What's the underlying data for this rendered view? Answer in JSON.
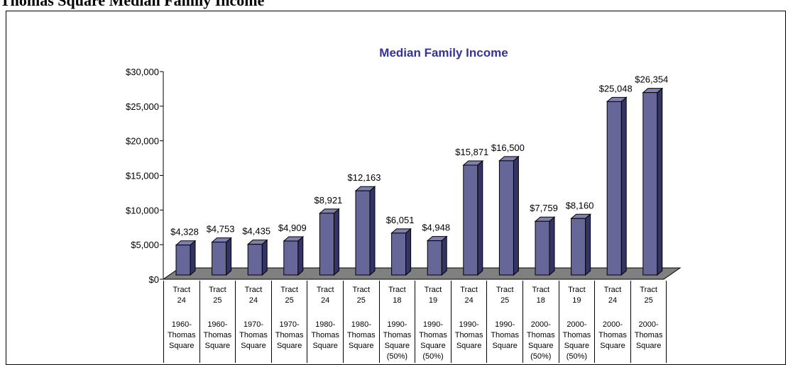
{
  "heading": "Thomas Square Median Family Income",
  "chart_data": {
    "type": "bar3d",
    "title": "Median Family Income",
    "categories": [
      "Tract 24",
      "Tract 25",
      "Tract 24",
      "Tract 25",
      "Tract 24",
      "Tract 25",
      "Tract 18",
      "Tract 19",
      "Tract 24",
      "Tract 25",
      "Tract 18",
      "Tract 19",
      "Tract 24",
      "Tract 25"
    ],
    "category_groups": [
      "1960-Thomas Square",
      "1960-Thomas Square",
      "1970-Thomas Square",
      "1970-Thomas Square",
      "1980-Thomas Square",
      "1980-Thomas Square",
      "1990-Thomas Square (50%)",
      "1990-Thomas Square (50%)",
      "1990-Thomas Square",
      "1990-Thomas Square",
      "2000-Thomas Square (50%)",
      "2000-Thomas Square (50%)",
      "2000-Thomas Square",
      "2000-Thomas Square"
    ],
    "values": [
      4328,
      4753,
      4435,
      4909,
      8921,
      12163,
      6051,
      4948,
      15871,
      16500,
      7759,
      8160,
      25048,
      26354
    ],
    "value_labels": [
      "$4,328",
      "$4,753",
      "$4,435",
      "$4,909",
      "$8,921",
      "$12,163",
      "$6,051",
      "$4,948",
      "$15,871",
      "$16,500",
      "$7,759",
      "$8,160",
      "$25,048",
      "$26,354"
    ],
    "color": "#666699",
    "ylim": [
      0,
      30000
    ],
    "yticks": [
      {
        "value": 0,
        "label": "$0"
      },
      {
        "value": 5000,
        "label": "$5,000"
      },
      {
        "value": 10000,
        "label": "$10,000"
      },
      {
        "value": 15000,
        "label": "$15,000"
      },
      {
        "value": 20000,
        "label": "$20,000"
      },
      {
        "value": 25000,
        "label": "$25,000"
      },
      {
        "value": 30000,
        "label": "$30,000"
      }
    ]
  }
}
